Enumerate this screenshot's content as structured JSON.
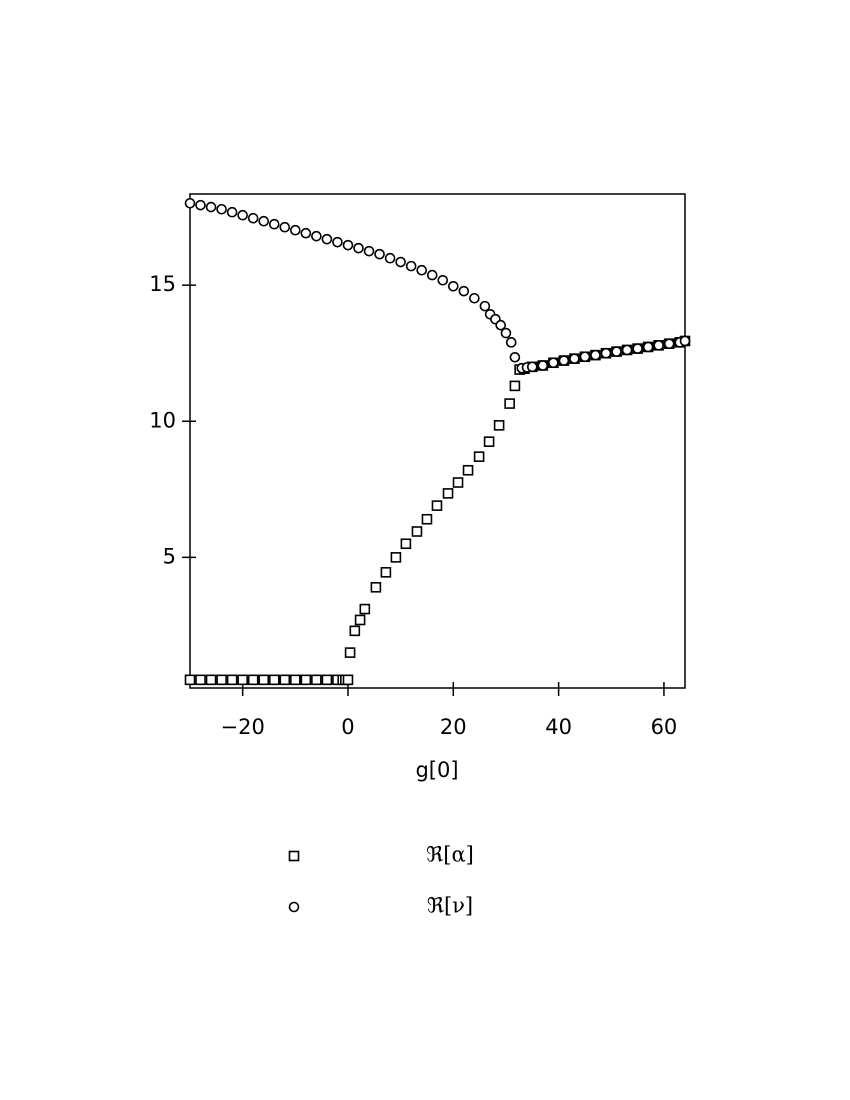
{
  "chart_data": {
    "type": "scatter",
    "x_label": "g[0]",
    "xlim": [
      -30,
      64
    ],
    "ylim": [
      0.2,
      18.35
    ],
    "xticks": [
      {
        "value": -20,
        "label": "−20"
      },
      0,
      20,
      40,
      60
    ],
    "yticks": [
      5,
      10,
      15
    ],
    "series": [
      {
        "name": "ℜ[α]",
        "color": "#000000",
        "marker": "square",
        "x": [
          -30,
          -28,
          -26,
          -24,
          -22,
          -20,
          -18,
          -16,
          -14,
          -12,
          -10,
          -8,
          -6,
          -4,
          -2,
          -1,
          -0.5,
          0,
          0.4,
          1.3,
          2.3,
          3.2,
          5.3,
          7.2,
          9.1,
          11,
          13.1,
          15,
          16.9,
          19,
          20.9,
          22.8,
          24.9,
          26.8,
          28.7,
          30.7,
          31.7,
          32.6,
          33.5,
          35,
          37,
          39,
          41,
          43,
          45,
          47,
          49,
          51,
          53,
          55,
          57,
          59,
          61,
          63,
          64
        ],
        "values": [
          0.5,
          0.5,
          0.5,
          0.5,
          0.5,
          0.5,
          0.5,
          0.5,
          0.5,
          0.5,
          0.5,
          0.5,
          0.5,
          0.5,
          0.5,
          0.5,
          0.5,
          0.5,
          1.5,
          2.3,
          2.7,
          3.1,
          3.9,
          4.45,
          5.0,
          5.5,
          5.95,
          6.4,
          6.9,
          7.35,
          7.75,
          8.2,
          8.7,
          9.25,
          9.85,
          10.65,
          11.3,
          11.9,
          11.93,
          12.0,
          12.05,
          12.15,
          12.23,
          12.3,
          12.37,
          12.43,
          12.5,
          12.56,
          12.62,
          12.67,
          12.73,
          12.79,
          12.85,
          12.9,
          12.95
        ]
      },
      {
        "name": "ℜ[ν]",
        "color": "#000000",
        "marker": "circle",
        "x": [
          -30,
          -28,
          -26,
          -24,
          -22,
          -20,
          -18,
          -16,
          -14,
          -12,
          -10,
          -8,
          -6,
          -4,
          -2,
          0,
          2,
          4,
          6,
          8,
          10,
          12,
          14,
          16,
          18,
          20,
          22,
          24,
          26,
          27,
          28,
          29,
          30,
          31,
          31.7,
          33,
          34,
          35,
          37,
          39,
          41,
          43,
          45,
          47,
          49,
          51,
          53,
          55,
          57,
          59,
          61,
          63,
          64
        ],
        "values": [
          18.01,
          17.94,
          17.87,
          17.79,
          17.68,
          17.57,
          17.46,
          17.35,
          17.24,
          17.13,
          17.02,
          16.91,
          16.8,
          16.69,
          16.58,
          16.47,
          16.36,
          16.25,
          16.14,
          15.99,
          15.85,
          15.7,
          15.55,
          15.37,
          15.18,
          14.96,
          14.78,
          14.52,
          14.23,
          13.93,
          13.75,
          13.53,
          13.24,
          12.9,
          12.35,
          11.95,
          11.98,
          12.0,
          12.05,
          12.15,
          12.23,
          12.3,
          12.37,
          12.43,
          12.5,
          12.56,
          12.62,
          12.67,
          12.73,
          12.79,
          12.85,
          12.9,
          12.95
        ]
      }
    ]
  }
}
